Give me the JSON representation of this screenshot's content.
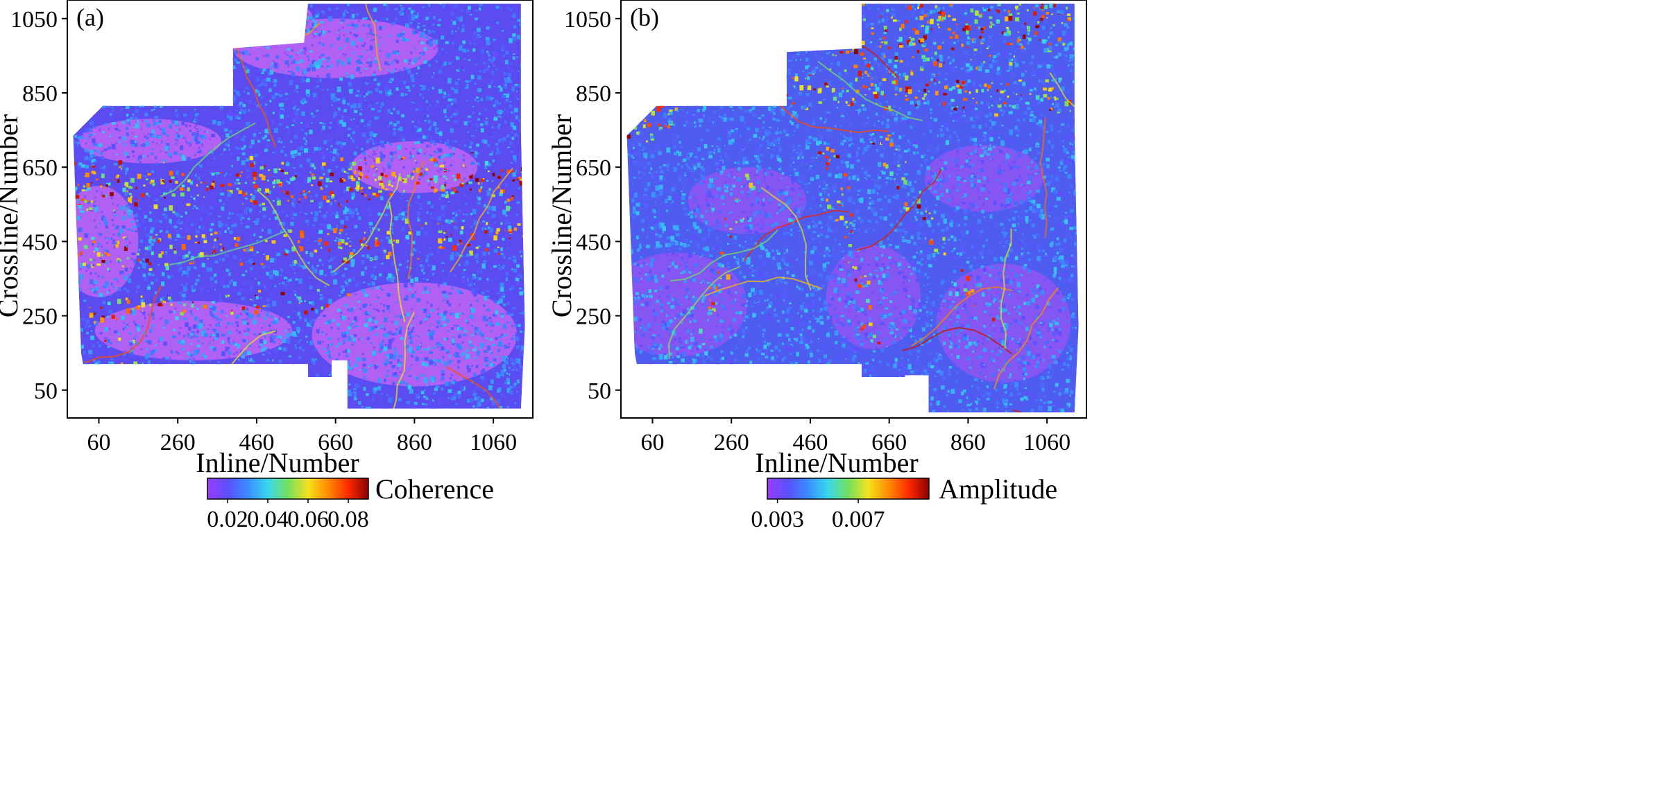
{
  "chart_data": [
    {
      "type": "heatmap",
      "panel_label": "(a)",
      "xlabel": "Inline/Number",
      "ylabel": "Crossline/Number",
      "xticks": [
        60,
        260,
        460,
        660,
        860,
        1060
      ],
      "yticks": [
        50,
        250,
        450,
        650,
        850,
        1050
      ],
      "xlim": [
        -20,
        1160
      ],
      "ylim": [
        -25,
        1100
      ],
      "colorbar": {
        "label": "Coherence",
        "ticks": [
          "0.02",
          "0.04",
          "0.06",
          "0.08"
        ],
        "tick_values": [
          0.02,
          0.04,
          0.06,
          0.08
        ],
        "range": [
          0.01,
          0.09
        ],
        "colors": [
          "#9b3cff",
          "#5a4fff",
          "#3b8cff",
          "#38d7ee",
          "#74e060",
          "#f4e21c",
          "#ff8a00",
          "#ff2a00",
          "#8b0000"
        ]
      },
      "survey_outline": [
        [
          -5,
          735
        ],
        [
          70,
          815
        ],
        [
          400,
          815
        ],
        [
          400,
          970
        ],
        [
          580,
          985
        ],
        [
          590,
          1090
        ],
        [
          1130,
          1090
        ],
        [
          1130,
          750
        ],
        [
          1140,
          220
        ],
        [
          1130,
          0
        ],
        [
          690,
          0
        ],
        [
          690,
          130
        ],
        [
          650,
          130
        ],
        [
          650,
          85
        ],
        [
          590,
          85
        ],
        [
          590,
          120
        ],
        [
          20,
          120
        ],
        [
          15,
          150
        ]
      ],
      "field": {
        "background": "#5a4cf0",
        "low_zones_color": "#c064f2",
        "low_zones": [
          [
            660,
            970,
            260,
            80
          ],
          [
            190,
            720,
            180,
            60
          ],
          [
            860,
            200,
            260,
            140
          ],
          [
            300,
            210,
            250,
            80
          ],
          [
            60,
            450,
            100,
            150
          ],
          [
            860,
            650,
            160,
            70
          ],
          [
            520,
            1060,
            80,
            30
          ]
        ],
        "high_bands": [
          {
            "x0": 20,
            "y0": 600,
            "x1": 1130,
            "y1": 620,
            "width": 80,
            "density": 1.0
          },
          {
            "x0": 40,
            "y0": 420,
            "x1": 1130,
            "y1": 470,
            "width": 60,
            "density": 0.75
          },
          {
            "x0": 30,
            "y0": 270,
            "x1": 700,
            "y1": 300,
            "width": 40,
            "density": 0.55
          },
          {
            "x0": 50,
            "y0": 250,
            "x1": 150,
            "y1": 130,
            "width": 40,
            "density": 0.6
          },
          {
            "x0": 420,
            "y0": 990,
            "x1": 580,
            "y1": 1070,
            "width": 20,
            "density": 0.8
          }
        ]
      }
    },
    {
      "type": "heatmap",
      "panel_label": "(b)",
      "xlabel": "Inline/Number",
      "ylabel": "Crossline/Number",
      "xticks": [
        60,
        260,
        460,
        660,
        860,
        1060
      ],
      "yticks": [
        50,
        250,
        450,
        650,
        850,
        1050
      ],
      "xlim": [
        -20,
        1160
      ],
      "ylim": [
        -25,
        1100
      ],
      "colorbar": {
        "label": "Amplitude",
        "ticks": [
          "0.003",
          "0.007"
        ],
        "tick_values": [
          0.003,
          0.007
        ],
        "range": [
          0.0025,
          0.0105
        ],
        "colors": [
          "#9b3cff",
          "#5a4fff",
          "#3b8cff",
          "#38d7ee",
          "#74e060",
          "#f4e21c",
          "#ff8a00",
          "#ff2a00",
          "#8b0000"
        ]
      },
      "survey_outline": [
        [
          -5,
          735
        ],
        [
          70,
          815
        ],
        [
          400,
          815
        ],
        [
          400,
          960
        ],
        [
          590,
          970
        ],
        [
          590,
          1090
        ],
        [
          1130,
          1090
        ],
        [
          1130,
          750
        ],
        [
          1140,
          220
        ],
        [
          1130,
          -10
        ],
        [
          760,
          -10
        ],
        [
          760,
          90
        ],
        [
          700,
          90
        ],
        [
          700,
          85
        ],
        [
          590,
          85
        ],
        [
          590,
          120
        ],
        [
          20,
          120
        ],
        [
          15,
          150
        ]
      ],
      "field": {
        "background": "#4f5cf0",
        "low_zones_color": "#8e55f2",
        "low_zones": [
          [
            120,
            280,
            180,
            140
          ],
          [
            620,
            300,
            120,
            140
          ],
          [
            950,
            230,
            170,
            160
          ],
          [
            300,
            560,
            150,
            90
          ],
          [
            900,
            620,
            150,
            90
          ]
        ],
        "high_bands": [
          {
            "x0": -5,
            "y0": 740,
            "x1": 90,
            "y1": 820,
            "width": 60,
            "density": 1.0
          },
          {
            "x0": 600,
            "y0": 980,
            "x1": 1130,
            "y1": 1080,
            "width": 120,
            "density": 0.9
          },
          {
            "x0": 400,
            "y0": 870,
            "x1": 1130,
            "y1": 840,
            "width": 60,
            "density": 0.85
          },
          {
            "x0": 500,
            "y0": 700,
            "x1": 620,
            "y1": 200,
            "width": 40,
            "density": 0.6
          },
          {
            "x0": 640,
            "y0": 720,
            "x1": 900,
            "y1": 250,
            "width": 40,
            "density": 0.55
          },
          {
            "x0": 300,
            "y0": 620,
            "x1": 180,
            "y1": 200,
            "width": 30,
            "density": 0.5
          }
        ]
      }
    }
  ]
}
